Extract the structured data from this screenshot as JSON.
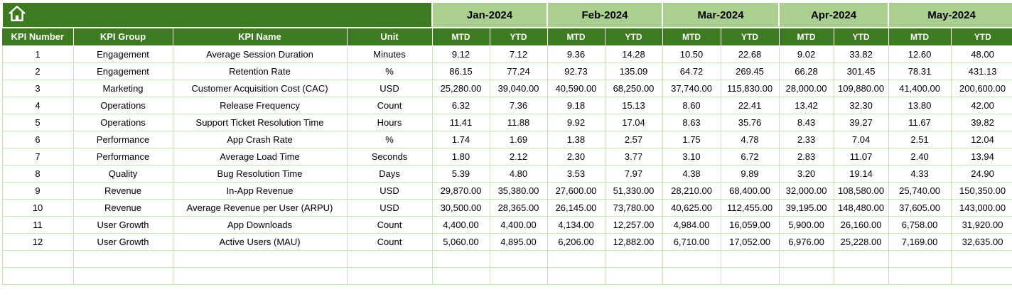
{
  "colors": {
    "dark_green": "#3e7a20",
    "light_green": "#a9d08e",
    "grid": "#c6e0b4"
  },
  "header": {
    "home_icon": "home-icon",
    "months": [
      "Jan-2024",
      "Feb-2024",
      "Mar-2024",
      "Apr-2024",
      "May-2024"
    ],
    "sub": [
      "MTD",
      "YTD"
    ],
    "left": [
      "KPI Number",
      "KPI Group",
      "KPI Name",
      "Unit"
    ]
  },
  "table": {
    "empty_row_count": 2,
    "rows": [
      {
        "kpi_number": "1",
        "kpi_group": "Engagement",
        "kpi_name": "Average Session Duration",
        "unit": "Minutes",
        "values": [
          "9.12",
          "7.12",
          "9.36",
          "14.28",
          "10.50",
          "22.68",
          "9.02",
          "33.82",
          "12.60",
          "48.00"
        ]
      },
      {
        "kpi_number": "2",
        "kpi_group": "Engagement",
        "kpi_name": "Retention Rate",
        "unit": "%",
        "values": [
          "86.15",
          "77.24",
          "92.73",
          "135.09",
          "64.72",
          "269.45",
          "66.28",
          "301.45",
          "78.31",
          "431.13"
        ]
      },
      {
        "kpi_number": "3",
        "kpi_group": "Marketing",
        "kpi_name": "Customer Acquisition Cost (CAC)",
        "unit": "USD",
        "values": [
          "25,280.00",
          "39,040.00",
          "40,590.00",
          "68,250.00",
          "37,740.00",
          "115,830.00",
          "28,000.00",
          "109,880.00",
          "41,400.00",
          "200,600.00"
        ]
      },
      {
        "kpi_number": "4",
        "kpi_group": "Operations",
        "kpi_name": "Release Frequency",
        "unit": "Count",
        "values": [
          "6.32",
          "7.36",
          "9.18",
          "15.13",
          "8.60",
          "22.41",
          "13.42",
          "32.30",
          "13.80",
          "42.00"
        ]
      },
      {
        "kpi_number": "5",
        "kpi_group": "Operations",
        "kpi_name": "Support Ticket Resolution Time",
        "unit": "Hours",
        "values": [
          "11.41",
          "11.88",
          "9.92",
          "17.04",
          "8.63",
          "35.76",
          "8.43",
          "39.27",
          "11.67",
          "39.82"
        ]
      },
      {
        "kpi_number": "6",
        "kpi_group": "Performance",
        "kpi_name": "App Crash Rate",
        "unit": "%",
        "values": [
          "1.74",
          "1.69",
          "1.38",
          "2.57",
          "1.75",
          "4.78",
          "2.33",
          "7.04",
          "2.51",
          "12.04"
        ]
      },
      {
        "kpi_number": "7",
        "kpi_group": "Performance",
        "kpi_name": "Average Load Time",
        "unit": "Seconds",
        "values": [
          "1.80",
          "2.12",
          "2.30",
          "3.77",
          "3.10",
          "6.72",
          "2.83",
          "11.07",
          "2.40",
          "13.94"
        ]
      },
      {
        "kpi_number": "8",
        "kpi_group": "Quality",
        "kpi_name": "Bug Resolution Time",
        "unit": "Days",
        "values": [
          "5.39",
          "4.80",
          "3.53",
          "7.97",
          "4.38",
          "9.89",
          "3.20",
          "19.14",
          "4.33",
          "24.90"
        ]
      },
      {
        "kpi_number": "9",
        "kpi_group": "Revenue",
        "kpi_name": "In-App Revenue",
        "unit": "USD",
        "values": [
          "29,870.00",
          "35,380.00",
          "27,600.00",
          "51,330.00",
          "28,210.00",
          "68,400.00",
          "32,000.00",
          "108,580.00",
          "25,740.00",
          "150,350.00"
        ]
      },
      {
        "kpi_number": "10",
        "kpi_group": "Revenue",
        "kpi_name": "Average Revenue per User (ARPU)",
        "unit": "USD",
        "values": [
          "30,500.00",
          "28,365.00",
          "26,145.00",
          "73,780.00",
          "40,625.00",
          "112,455.00",
          "39,195.00",
          "148,480.00",
          "37,605.00",
          "143,000.00"
        ]
      },
      {
        "kpi_number": "11",
        "kpi_group": "User Growth",
        "kpi_name": "App Downloads",
        "unit": "Count",
        "values": [
          "4,400.00",
          "4,400.00",
          "4,134.00",
          "12,257.00",
          "4,984.00",
          "16,059.00",
          "5,900.00",
          "26,160.00",
          "6,758.00",
          "31,920.00"
        ]
      },
      {
        "kpi_number": "12",
        "kpi_group": "User Growth",
        "kpi_name": "Active Users (MAU)",
        "unit": "Count",
        "values": [
          "5,060.00",
          "4,895.00",
          "6,206.00",
          "12,882.00",
          "6,710.00",
          "17,052.00",
          "6,976.00",
          "25,228.00",
          "7,169.00",
          "32,635.00"
        ]
      }
    ]
  }
}
